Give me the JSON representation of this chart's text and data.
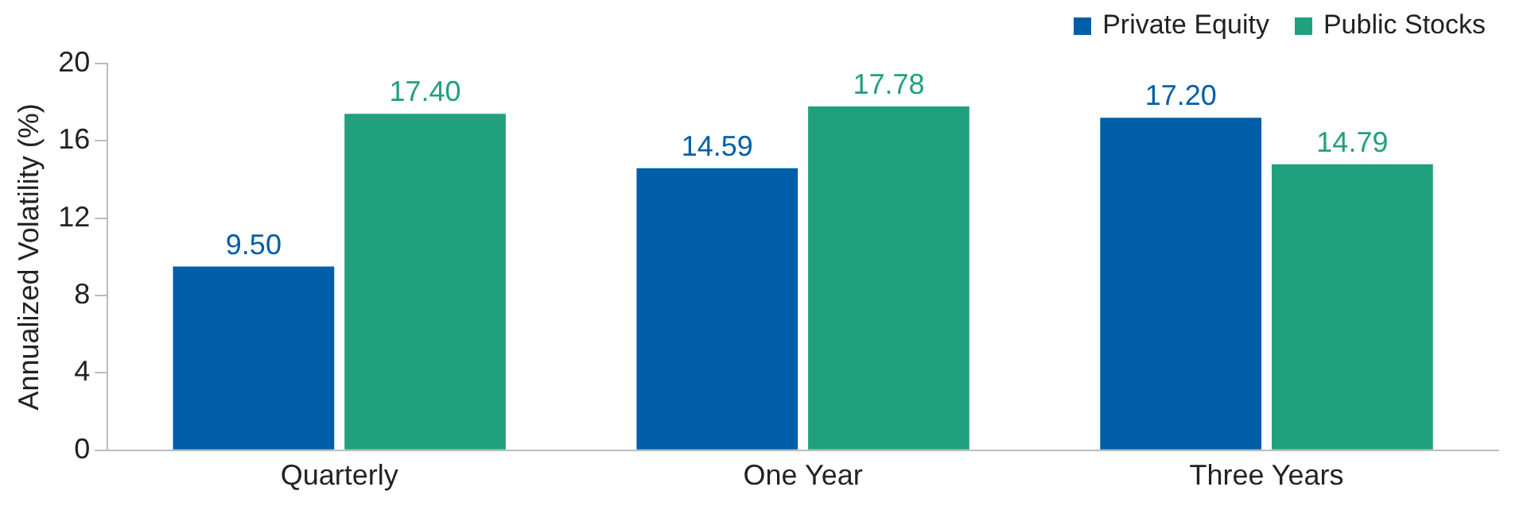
{
  "chart_data": {
    "type": "bar",
    "ylabel": "Annualized Volatility (%)",
    "categories": [
      "Quarterly",
      "One Year",
      "Three Years"
    ],
    "series": [
      {
        "name": "Private Equity",
        "color": "#005ea8",
        "values": [
          9.5,
          14.59,
          17.2
        ],
        "value_labels": [
          "9.50",
          "14.59",
          "17.20"
        ]
      },
      {
        "name": "Public Stocks",
        "color": "#21a07e",
        "values": [
          17.4,
          17.78,
          14.79
        ],
        "value_labels": [
          "17.40",
          "17.78",
          "14.79"
        ]
      }
    ],
    "ylim": [
      0,
      20
    ],
    "yticks": [
      0,
      4,
      8,
      12,
      16,
      20
    ],
    "grid": false,
    "legend": "top right"
  }
}
